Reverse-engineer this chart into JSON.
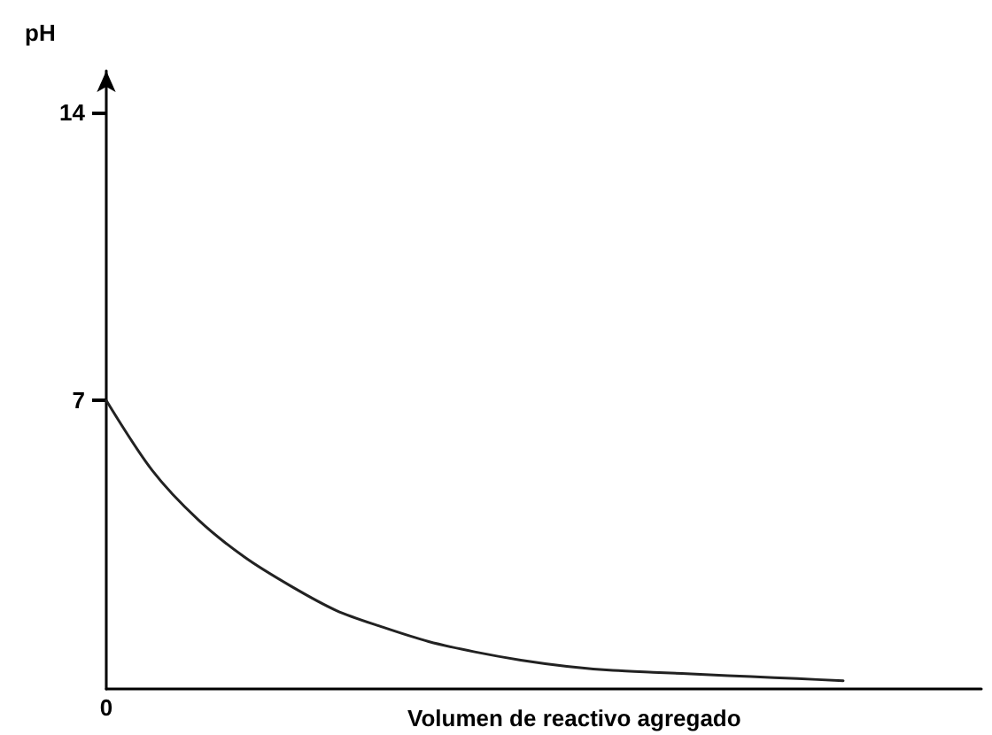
{
  "chart_data": {
    "type": "line",
    "xlabel": "Volumen de reactivo agregado",
    "ylabel": "pH",
    "categories": [
      "0",
      null,
      null,
      null,
      null,
      null,
      null,
      null,
      null,
      null,
      null,
      null,
      null,
      null,
      null,
      null,
      null,
      null,
      null,
      null
    ],
    "series": [
      {
        "color": "#222222",
        "values": [
          7.0,
          5.3,
          4.1,
          3.2,
          2.5,
          1.9,
          1.5,
          1.15,
          0.9,
          0.7,
          0.55,
          0.45,
          0.4,
          0.35,
          0.3,
          0.25,
          0.2,
          null,
          null,
          null
        ]
      }
    ],
    "ylim": [
      0,
      15
    ],
    "yticks": [
      7,
      14
    ],
    "grid": false,
    "marker": "none",
    "line_style": "solid"
  }
}
